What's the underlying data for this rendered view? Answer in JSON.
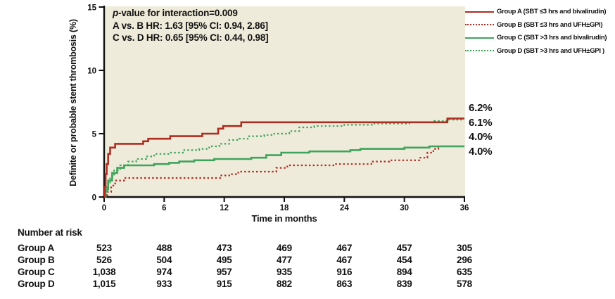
{
  "chart_data": {
    "type": "line",
    "subtype": "kaplan-meier-cumulative-incidence-step",
    "xlabel": "Time in months",
    "ylabel": "Definite or probable stent thrombosis (%)",
    "xlim": [
      0,
      36
    ],
    "ylim": [
      0,
      15
    ],
    "x_ticks": [
      0,
      6,
      12,
      18,
      24,
      30,
      36
    ],
    "y_ticks": [
      0,
      5,
      10,
      15
    ],
    "grid": false,
    "legend_position": "top-right-outside",
    "plot_bg": "#EFEBDA",
    "axis_color": "#111111",
    "annotation": {
      "p": "p",
      "line1_rest": "-value for interaction=0.009",
      "line2": "A vs. B HR: 1.63 [95% CI: 0.94, 2.86]",
      "line3": "C vs. D HR: 0.65 [95% CI: 0.44, 0.98]"
    },
    "series": [
      {
        "name": "Group A",
        "label": "Group A (SBT ≤3 hrs and bivalirudin)",
        "color": "#AE2C20",
        "line_style": "solid",
        "end_label": "6.2%",
        "points": [
          [
            0,
            0
          ],
          [
            0.07,
            0.8
          ],
          [
            0.15,
            1.8
          ],
          [
            0.25,
            2.6
          ],
          [
            0.4,
            3.4
          ],
          [
            0.6,
            3.9
          ],
          [
            1.1,
            4.2
          ],
          [
            3.9,
            4.4
          ],
          [
            4.4,
            4.6
          ],
          [
            6.6,
            4.8
          ],
          [
            9.8,
            5.0
          ],
          [
            11.4,
            5.4
          ],
          [
            11.9,
            5.6
          ],
          [
            13.7,
            5.9
          ],
          [
            34.3,
            6.2
          ],
          [
            36,
            6.2
          ]
        ]
      },
      {
        "name": "Group B",
        "label": "Group B (SBT ≤3 hrs and UFH±GPI)",
        "color": "#AE2C20",
        "line_style": "dotted",
        "end_label": "4.0%",
        "points": [
          [
            0,
            0
          ],
          [
            0.3,
            0.4
          ],
          [
            0.7,
            0.9
          ],
          [
            1.1,
            1.3
          ],
          [
            2,
            1.5
          ],
          [
            11.6,
            1.7
          ],
          [
            12.5,
            1.8
          ],
          [
            13.4,
            2.0
          ],
          [
            17.2,
            2.3
          ],
          [
            18.3,
            2.5
          ],
          [
            23,
            2.6
          ],
          [
            26.7,
            2.8
          ],
          [
            28.5,
            2.9
          ],
          [
            31.5,
            3.1
          ],
          [
            32.3,
            3.5
          ],
          [
            32.9,
            3.8
          ],
          [
            33.4,
            4.0
          ],
          [
            36,
            4.0
          ]
        ]
      },
      {
        "name": "Group C",
        "label": "Group C (SBT >3 hrs and bivalirudin)",
        "color": "#3FA45C",
        "line_style": "solid",
        "end_label": "4.0%",
        "points": [
          [
            0,
            0
          ],
          [
            0.15,
            0.6
          ],
          [
            0.4,
            1.3
          ],
          [
            0.8,
            1.9
          ],
          [
            1.3,
            2.3
          ],
          [
            2,
            2.5
          ],
          [
            5,
            2.6
          ],
          [
            6.5,
            2.7
          ],
          [
            7.5,
            2.8
          ],
          [
            9,
            2.9
          ],
          [
            11,
            3.0
          ],
          [
            14.7,
            3.1
          ],
          [
            16.2,
            3.3
          ],
          [
            17.7,
            3.5
          ],
          [
            20.5,
            3.6
          ],
          [
            24.6,
            3.7
          ],
          [
            25.6,
            3.8
          ],
          [
            30,
            3.9
          ],
          [
            32.5,
            4.0
          ],
          [
            36,
            4.0
          ]
        ]
      },
      {
        "name": "Group D",
        "label": "Group D (SBT >3 hrs and UFH±GPI )",
        "color": "#3FA45C",
        "line_style": "dotted",
        "end_label": "6.1%",
        "points": [
          [
            0,
            0
          ],
          [
            0.1,
            0.4
          ],
          [
            0.3,
            1.0
          ],
          [
            0.6,
            1.6
          ],
          [
            1,
            2.1
          ],
          [
            1.6,
            2.5
          ],
          [
            2.4,
            2.8
          ],
          [
            3.2,
            3.0
          ],
          [
            4.2,
            3.2
          ],
          [
            5,
            3.4
          ],
          [
            6.5,
            3.5
          ],
          [
            8,
            3.7
          ],
          [
            9.5,
            3.8
          ],
          [
            10.5,
            4.0
          ],
          [
            11.5,
            4.2
          ],
          [
            12.5,
            4.5
          ],
          [
            13.5,
            4.6
          ],
          [
            14.5,
            4.8
          ],
          [
            16,
            4.9
          ],
          [
            17,
            5.0
          ],
          [
            18.5,
            5.2
          ],
          [
            19.5,
            5.5
          ],
          [
            21,
            5.6
          ],
          [
            24,
            5.7
          ],
          [
            27,
            5.8
          ],
          [
            30.5,
            5.9
          ],
          [
            33,
            6.0
          ],
          [
            34.2,
            6.1
          ],
          [
            36,
            6.1
          ]
        ]
      }
    ],
    "end_labels_order": [
      "6.2%",
      "6.1%",
      "4.0%",
      "4.0%"
    ]
  },
  "risk_table": {
    "title": "Number at risk",
    "time_points": [
      0,
      6,
      12,
      18,
      24,
      30,
      36
    ],
    "rows": [
      {
        "label": "Group A",
        "values": [
          "523",
          "488",
          "473",
          "469",
          "467",
          "457",
          "305"
        ]
      },
      {
        "label": "Group B",
        "values": [
          "526",
          "504",
          "495",
          "477",
          "467",
          "454",
          "296"
        ]
      },
      {
        "label": "Group C",
        "values": [
          "1,038",
          "974",
          "957",
          "935",
          "916",
          "894",
          "635"
        ]
      },
      {
        "label": "Group D",
        "values": [
          "1,015",
          "933",
          "915",
          "882",
          "863",
          "839",
          "578"
        ]
      }
    ]
  }
}
